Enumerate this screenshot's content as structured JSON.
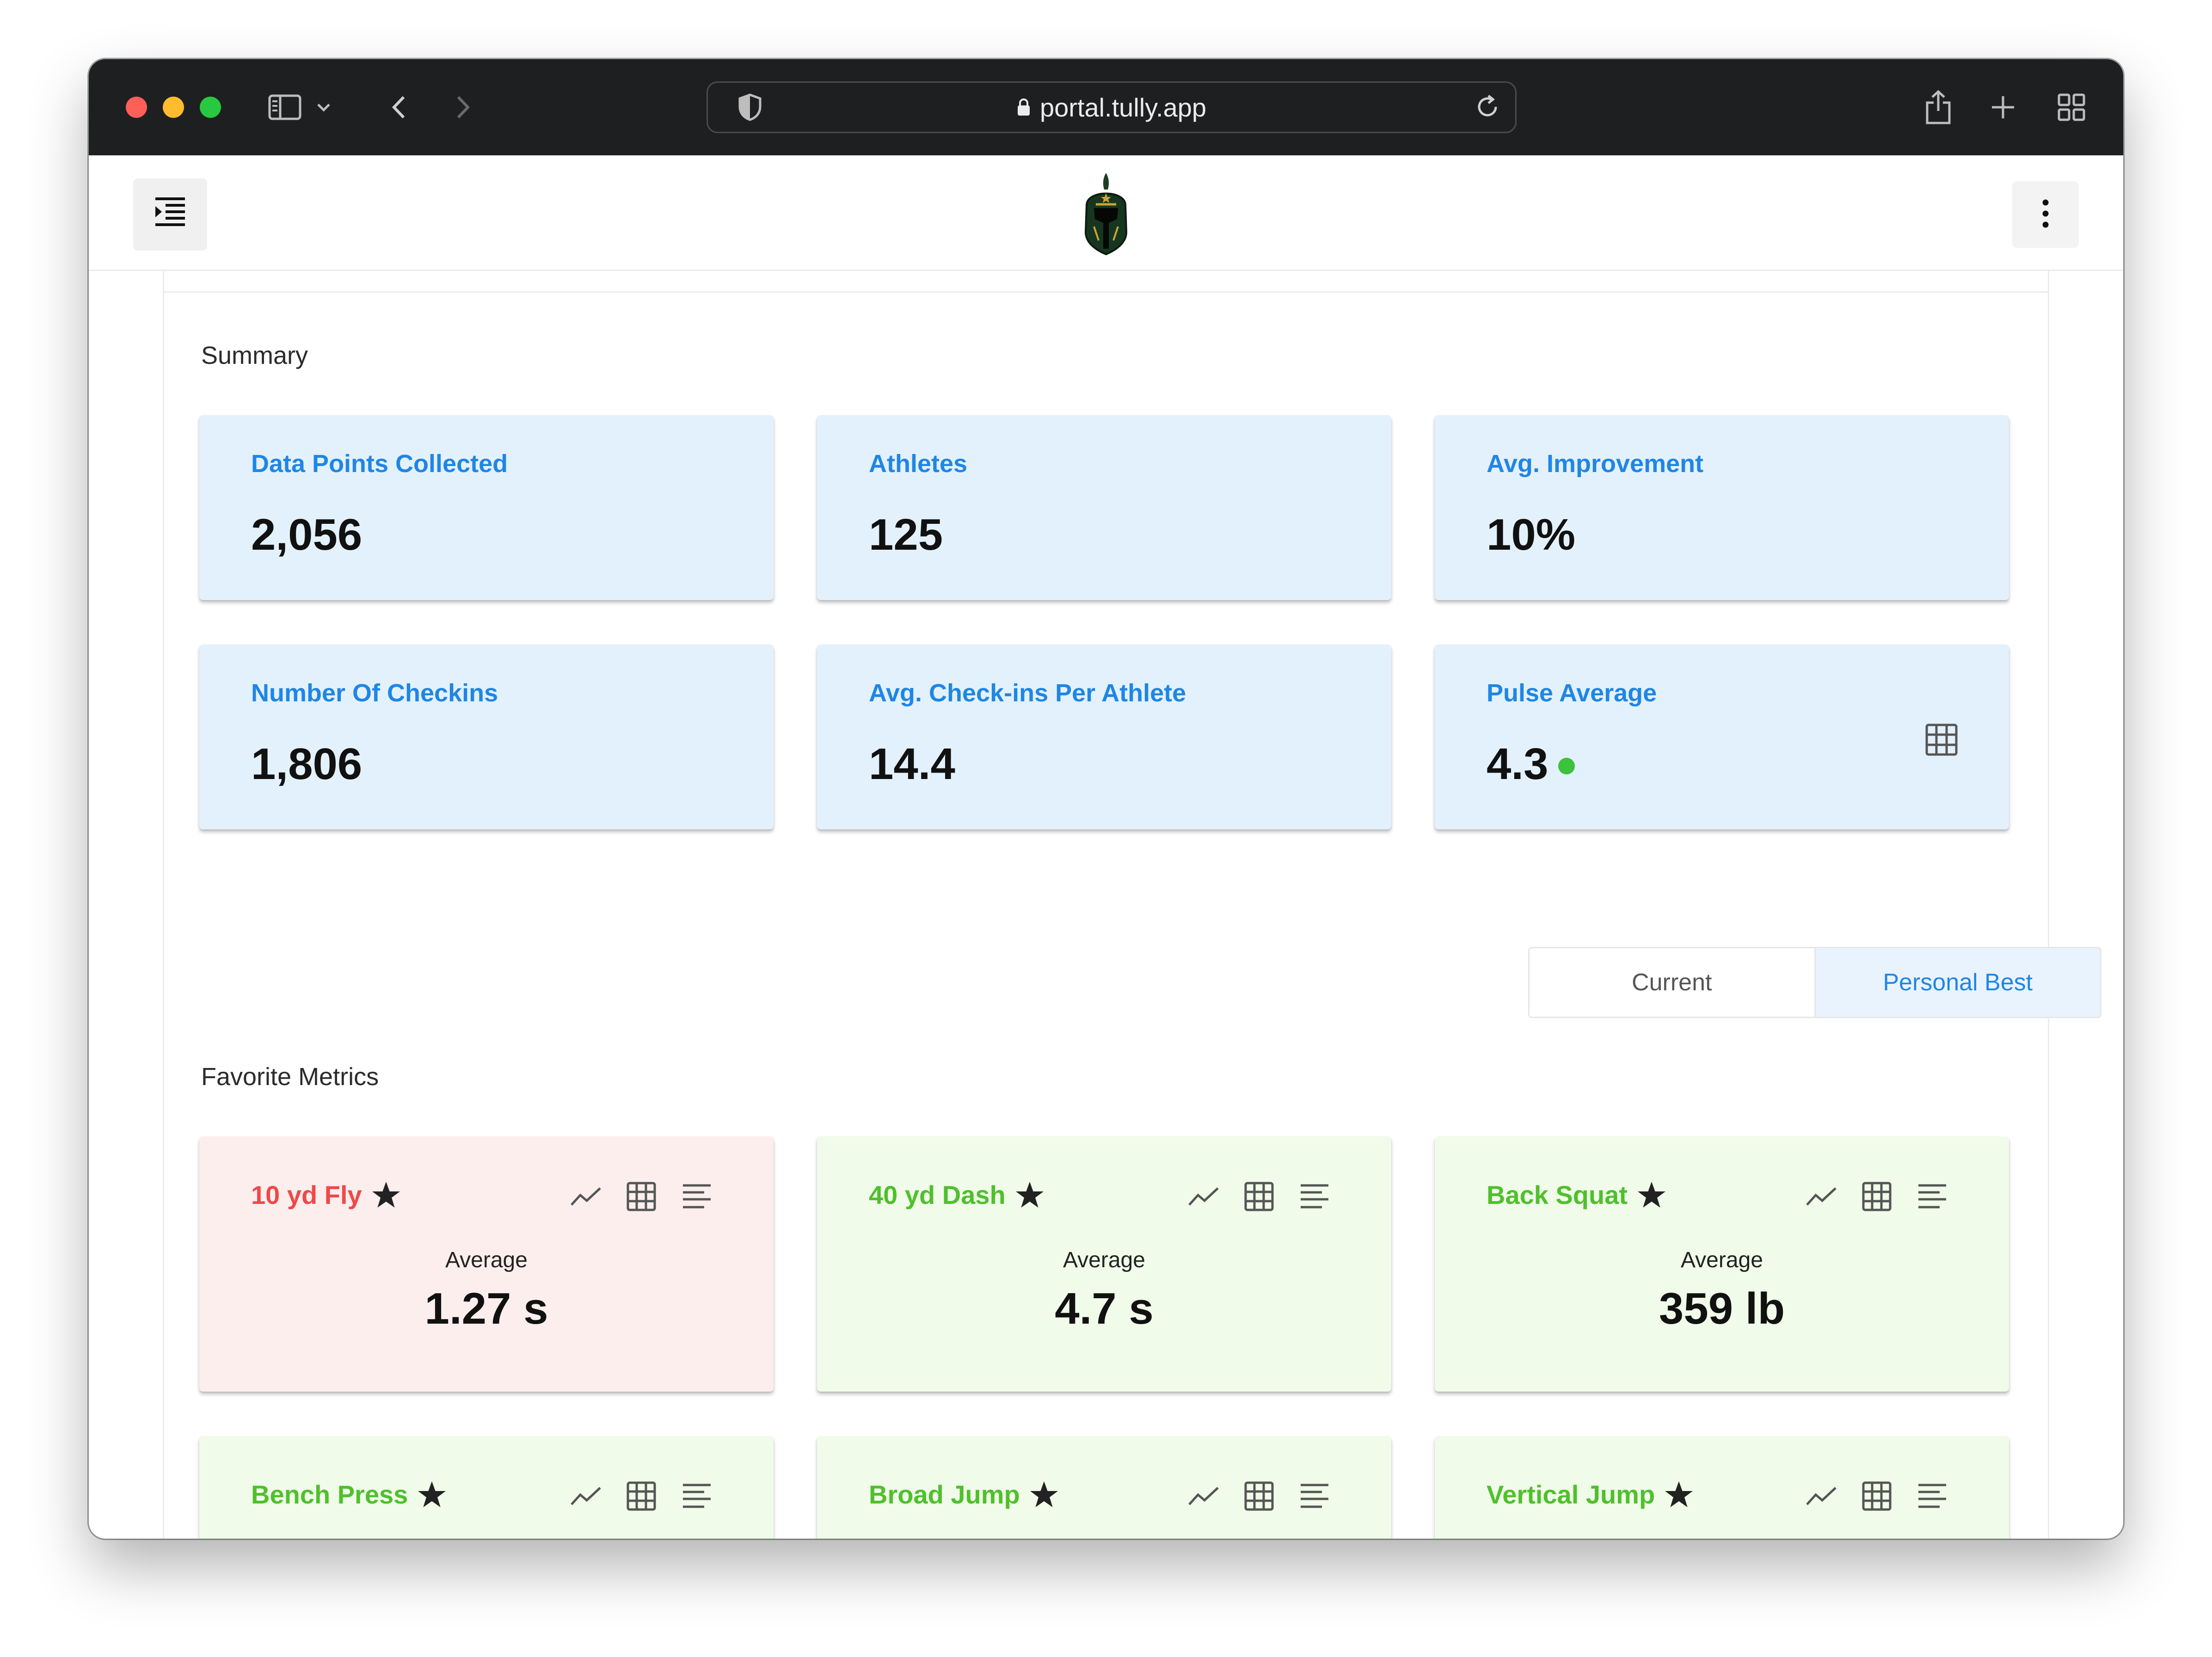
{
  "browser": {
    "url": "portal.tully.app"
  },
  "summary": {
    "title": "Summary",
    "cards": [
      {
        "label": "Data Points Collected",
        "value": "2,056"
      },
      {
        "label": "Athletes",
        "value": "125"
      },
      {
        "label": "Avg. Improvement",
        "value": "10%"
      },
      {
        "label": "Number Of Checkins",
        "value": "1,806"
      },
      {
        "label": "Avg. Check-ins Per Athlete",
        "value": "14.4"
      },
      {
        "label": "Pulse Average",
        "value": "4.3",
        "status_color": "#3cc23c"
      }
    ]
  },
  "view_toggle": {
    "options": [
      "Current",
      "Personal Best"
    ],
    "selected": "Personal Best"
  },
  "favorites": {
    "title": "Favorite Metrics",
    "cards": [
      {
        "name": "10 yd Fly",
        "avg_label": "Average",
        "value": "1.27 s",
        "status": "red"
      },
      {
        "name": "40 yd Dash",
        "avg_label": "Average",
        "value": "4.7 s",
        "status": "green"
      },
      {
        "name": "Back Squat",
        "avg_label": "Average",
        "value": "359 lb",
        "status": "green"
      },
      {
        "name": "Bench Press",
        "status": "green"
      },
      {
        "name": "Broad Jump",
        "status": "green"
      },
      {
        "name": "Vertical Jump",
        "status": "green"
      }
    ]
  },
  "colors": {
    "accent_blue": "#1f86e5",
    "stat_card_bg": "#e3f1fd",
    "metric_red": "#f04848",
    "metric_green": "#4fc02c"
  }
}
